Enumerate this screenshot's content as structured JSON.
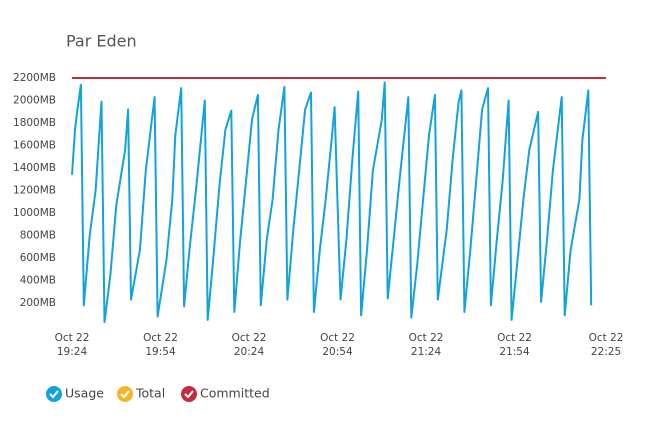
{
  "chart_data": {
    "type": "line",
    "title": "Par Eden",
    "xlim": [
      "Oct 22 19:24",
      "Oct 22 22:25"
    ],
    "xticks": [
      "Oct 22 19:24",
      "Oct 22 19:54",
      "Oct 22 20:24",
      "Oct 22 20:54",
      "Oct 22 21:24",
      "Oct 22 21:54",
      "Oct 22 22:25"
    ],
    "ylim": [
      0,
      2200
    ],
    "yticks": [
      {
        "value": 200,
        "label": "200MB"
      },
      {
        "value": 400,
        "label": "400MB"
      },
      {
        "value": 600,
        "label": "600MB"
      },
      {
        "value": 800,
        "label": "800MB"
      },
      {
        "value": 1000,
        "label": "1000MB"
      },
      {
        "value": 1200,
        "label": "1200MB"
      },
      {
        "value": 1400,
        "label": "1400MB"
      },
      {
        "value": 1600,
        "label": "1600MB"
      },
      {
        "value": 1800,
        "label": "1800MB"
      },
      {
        "value": 2000,
        "label": "2000MB"
      },
      {
        "value": 2200,
        "label": "2200MB"
      }
    ],
    "grid": false,
    "legend": "bottom-left",
    "series": [
      {
        "name": "Usage",
        "color": "#12a2dc",
        "x": [
          "Oct 22 19:24",
          "Oct 22 19:25",
          "Oct 22 19:26",
          "Oct 22 19:27",
          "Oct 22 19:28",
          "Oct 22 19:30",
          "Oct 22 19:32",
          "Oct 22 19:34",
          "Oct 22 19:35",
          "Oct 22 19:37",
          "Oct 22 19:39",
          "Oct 22 19:42",
          "Oct 22 19:43",
          "Oct 22 19:44",
          "Oct 22 19:47",
          "Oct 22 19:49",
          "Oct 22 19:52",
          "Oct 22 19:53",
          "Oct 22 19:56",
          "Oct 22 19:58",
          "Oct 22 19:59",
          "Oct 22 20:01",
          "Oct 22 20:02",
          "Oct 22 20:04",
          "Oct 22 20:06",
          "Oct 22 20:09",
          "Oct 22 20:10",
          "Oct 22 20:12",
          "Oct 22 20:14",
          "Oct 22 20:16",
          "Oct 22 20:18",
          "Oct 22 20:19",
          "Oct 22 20:21",
          "Oct 22 20:23",
          "Oct 22 20:25",
          "Oct 22 20:27",
          "Oct 22 20:28",
          "Oct 22 20:30",
          "Oct 22 20:32",
          "Oct 22 20:34",
          "Oct 22 20:36",
          "Oct 22 20:37",
          "Oct 22 20:39",
          "Oct 22 20:41",
          "Oct 22 20:43",
          "Oct 22 20:45",
          "Oct 22 20:46",
          "Oct 22 20:48",
          "Oct 22 20:50",
          "Oct 22 20:52",
          "Oct 22 20:53",
          "Oct 22 20:55",
          "Oct 22 20:57",
          "Oct 22 20:59",
          "Oct 22 21:01",
          "Oct 22 21:02",
          "Oct 22 21:04",
          "Oct 22 21:06",
          "Oct 22 21:09",
          "Oct 22 21:10",
          "Oct 22 21:11",
          "Oct 22 21:13",
          "Oct 22 21:15",
          "Oct 22 21:18",
          "Oct 22 21:19",
          "Oct 22 21:21",
          "Oct 22 21:23",
          "Oct 22 21:25",
          "Oct 22 21:27",
          "Oct 22 21:28",
          "Oct 22 21:31",
          "Oct 22 21:33",
          "Oct 22 21:35",
          "Oct 22 21:36",
          "Oct 22 21:37",
          "Oct 22 21:39",
          "Oct 22 21:41",
          "Oct 22 21:43",
          "Oct 22 21:45",
          "Oct 22 21:46",
          "Oct 22 21:48",
          "Oct 22 21:50",
          "Oct 22 21:52",
          "Oct 22 21:53",
          "Oct 22 21:55",
          "Oct 22 21:57",
          "Oct 22 21:59",
          "Oct 22 22:02",
          "Oct 22 22:03",
          "Oct 22 22:05",
          "Oct 22 22:07",
          "Oct 22 22:10",
          "Oct 22 22:11",
          "Oct 22 22:13",
          "Oct 22 22:16",
          "Oct 22 22:17",
          "Oct 22 22:19",
          "Oct 22 22:20"
        ],
        "values": [
          1340,
          1740,
          1950,
          2140,
          180,
          800,
          1200,
          1990,
          30,
          450,
          1070,
          1560,
          1920,
          230,
          670,
          1380,
          2030,
          80,
          580,
          1120,
          1690,
          2110,
          170,
          720,
          1200,
          2000,
          50,
          630,
          1250,
          1740,
          1910,
          120,
          760,
          1290,
          1830,
          2050,
          180,
          760,
          1120,
          1740,
          2120,
          230,
          850,
          1380,
          1920,
          2070,
          120,
          670,
          1120,
          1650,
          1940,
          230,
          760,
          1470,
          2080,
          90,
          670,
          1380,
          1830,
          2160,
          240,
          760,
          1290,
          2030,
          70,
          540,
          1120,
          1690,
          2050,
          230,
          850,
          1470,
          1980,
          2090,
          120,
          670,
          1290,
          1920,
          2110,
          180,
          760,
          1290,
          2000,
          50,
          580,
          1120,
          1560,
          1900,
          210,
          760,
          1380,
          2030,
          90,
          670,
          1120,
          1650,
          2090,
          180
        ]
      },
      {
        "name": "Total",
        "color": "#f4b526",
        "x": [],
        "values": []
      },
      {
        "name": "Committed",
        "color": "#c42b3c",
        "x": [
          "Oct 22 19:24",
          "Oct 22 22:25"
        ],
        "values": [
          2200,
          2200
        ]
      }
    ]
  }
}
